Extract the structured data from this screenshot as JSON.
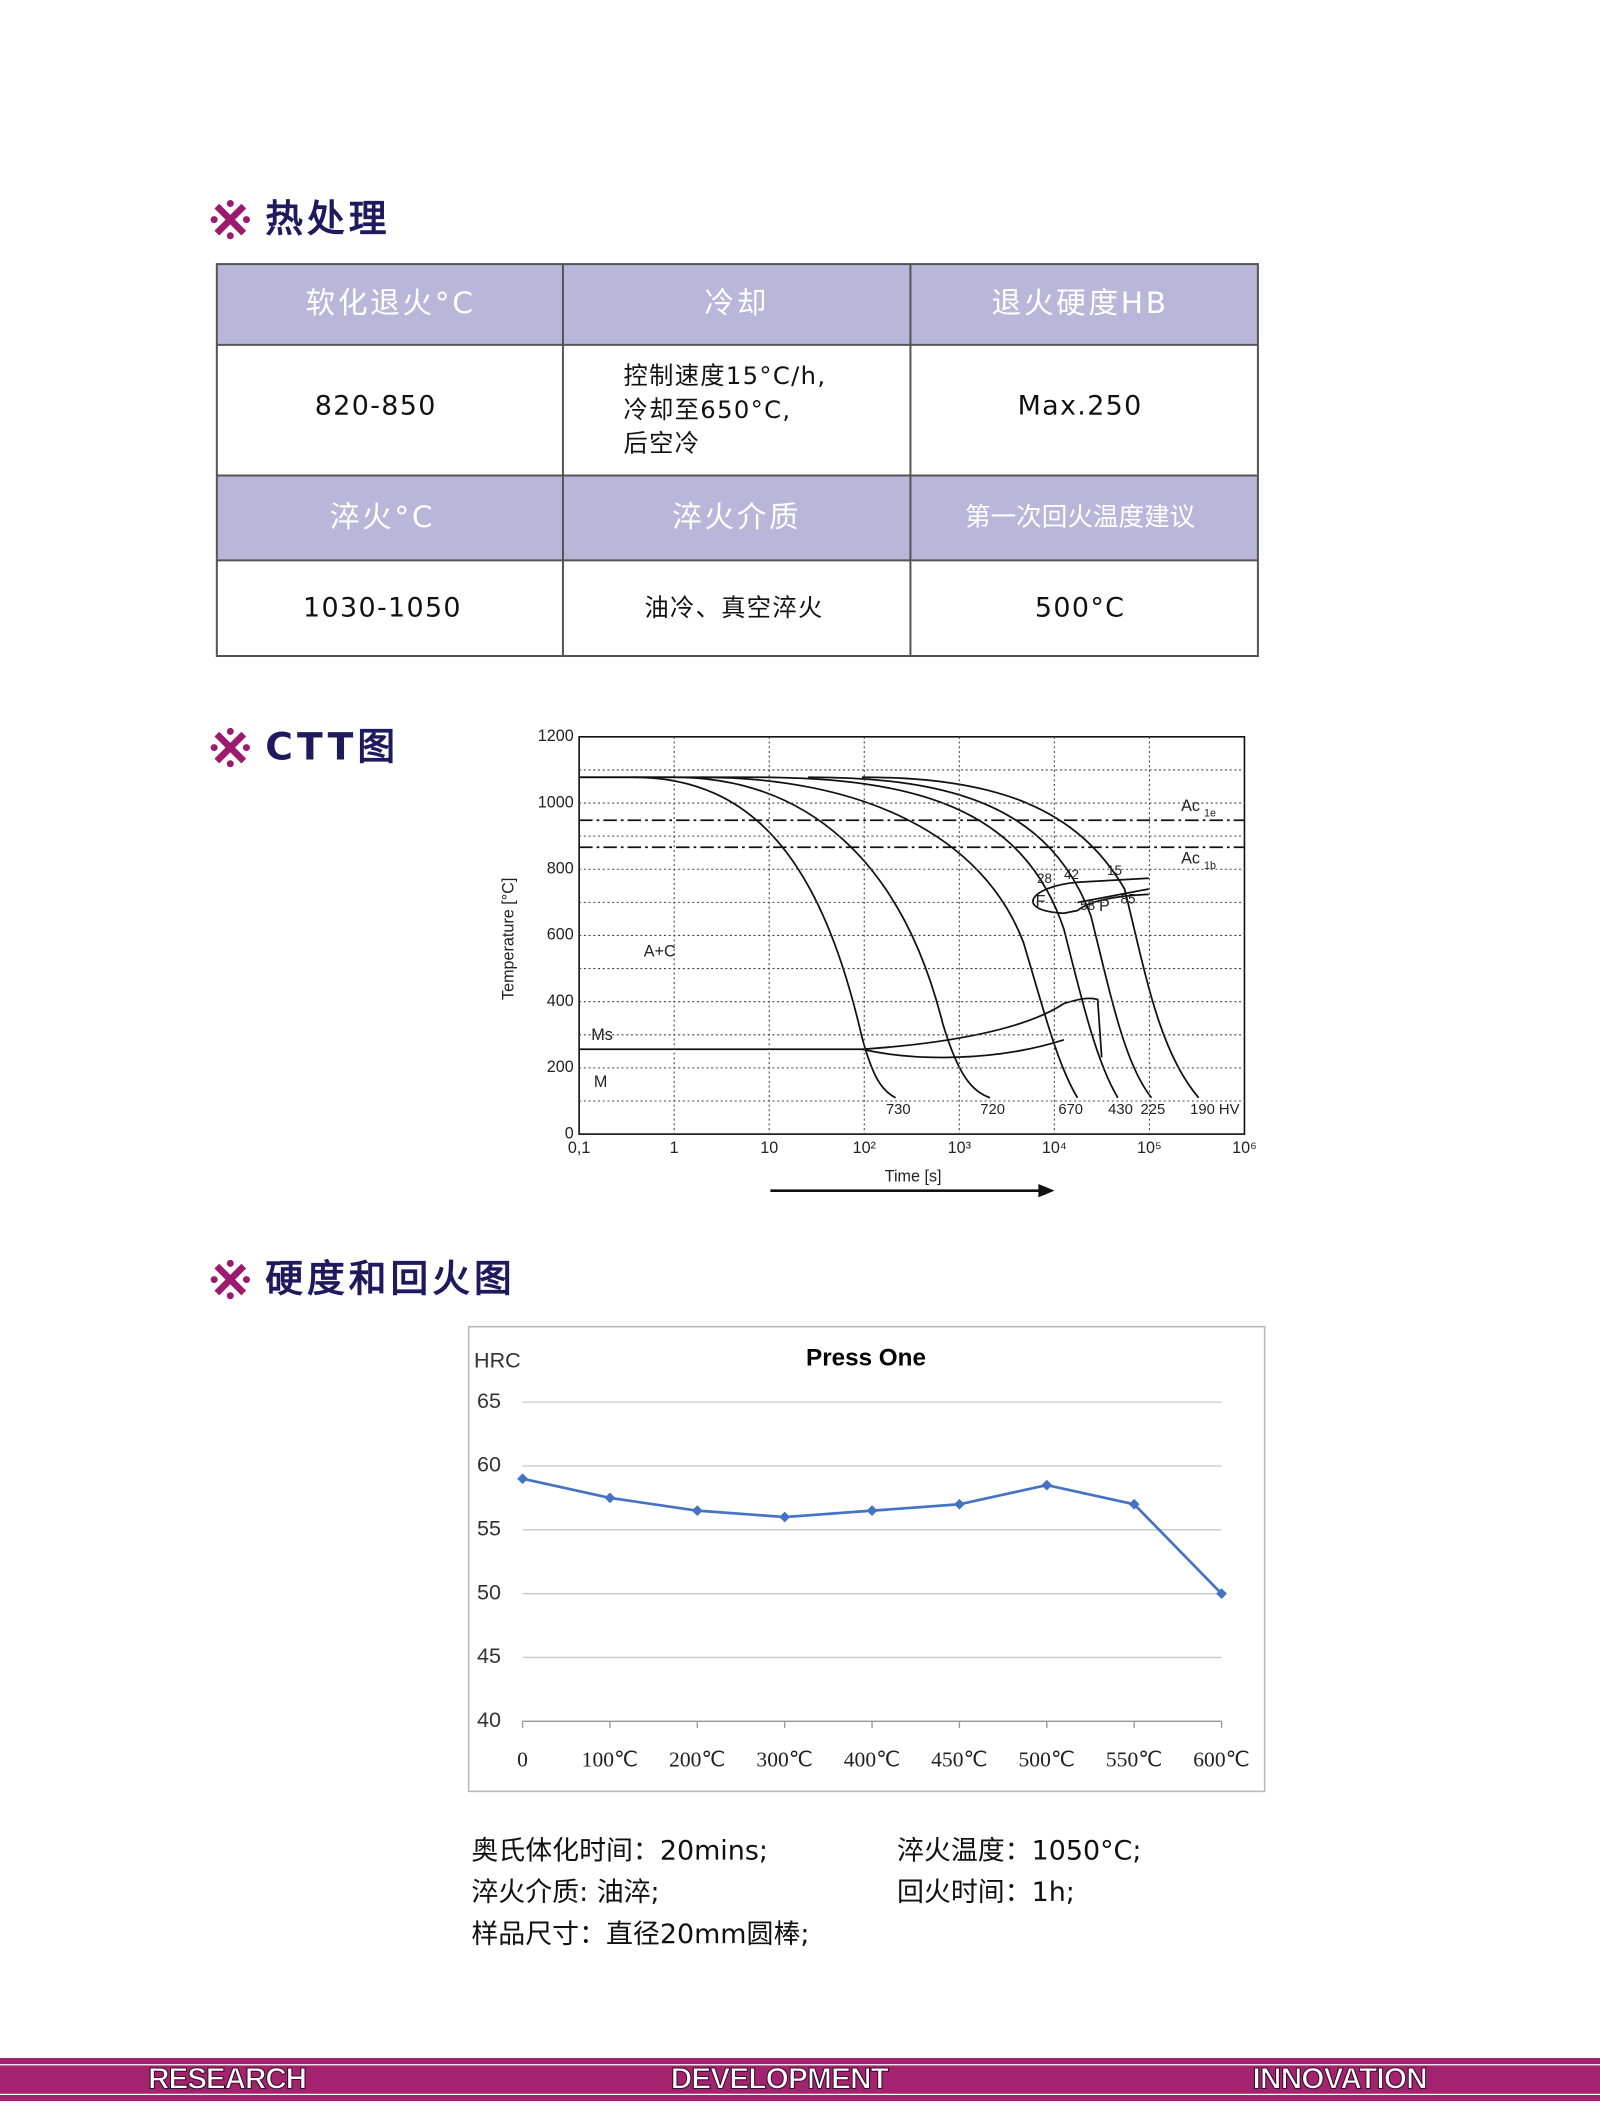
{
  "sections": [
    {
      "title": "热处理"
    },
    {
      "title": "CTT图"
    },
    {
      "title": "硬度和回火图"
    }
  ],
  "table": {
    "rows": [
      [
        "软化退火°C",
        "冷却",
        "退火硬度HB"
      ],
      [
        "820-850",
        [
          "控制速度15°C/h,",
          "冷却至650°C,",
          "后空冷"
        ],
        "Max.250"
      ],
      [
        "淬火°C",
        "淬火介质",
        "第一次回火温度建议"
      ],
      [
        "1030-1050",
        "油冷、真空淬火",
        "500°C"
      ]
    ]
  },
  "ctt": {
    "y_label": "Temperature [°C]",
    "x_label": "Time [s]",
    "yticks": [
      "0",
      "200",
      "400",
      "600",
      "800",
      "1000",
      "1200"
    ],
    "xticks": [
      "0,1",
      "1",
      "10",
      "10²",
      "10³",
      "10⁴",
      "10⁵",
      "10⁶"
    ],
    "regions": [
      "A+C",
      "Ms",
      "M",
      "F",
      "P"
    ],
    "ac_lines": [
      {
        "text": "Ac",
        "sub": "1e"
      },
      {
        "text": "Ac",
        "sub": "1b"
      }
    ],
    "fractions": [
      "28",
      "42",
      "15",
      "58",
      "85"
    ],
    "hardness": [
      "730",
      "720",
      "670",
      "430",
      "225",
      "190 HV"
    ]
  },
  "chart_data": {
    "type": "line",
    "title": "Press One",
    "y_label": "HRC",
    "categories": [
      "0",
      "100℃",
      "200℃",
      "300℃",
      "400℃",
      "450℃",
      "500℃",
      "550℃",
      "600℃"
    ],
    "values": [
      59,
      57.5,
      56.5,
      56,
      56.5,
      57,
      58.5,
      57,
      50
    ],
    "color": "#4472c4",
    "ylim": [
      40,
      65
    ],
    "yticks": [
      40,
      45,
      50,
      55,
      60,
      65
    ],
    "grid": true
  },
  "notes": [
    "奥氏体化时间：20mins;",
    "淬火温度：1050°C;",
    "淬火介质: 油淬;",
    "回火时间：1h;",
    "样品尺寸：直径20mm圆棒;"
  ],
  "footer": [
    "RESEARCH",
    "DEVELOPMENT",
    "INNOVATION"
  ]
}
